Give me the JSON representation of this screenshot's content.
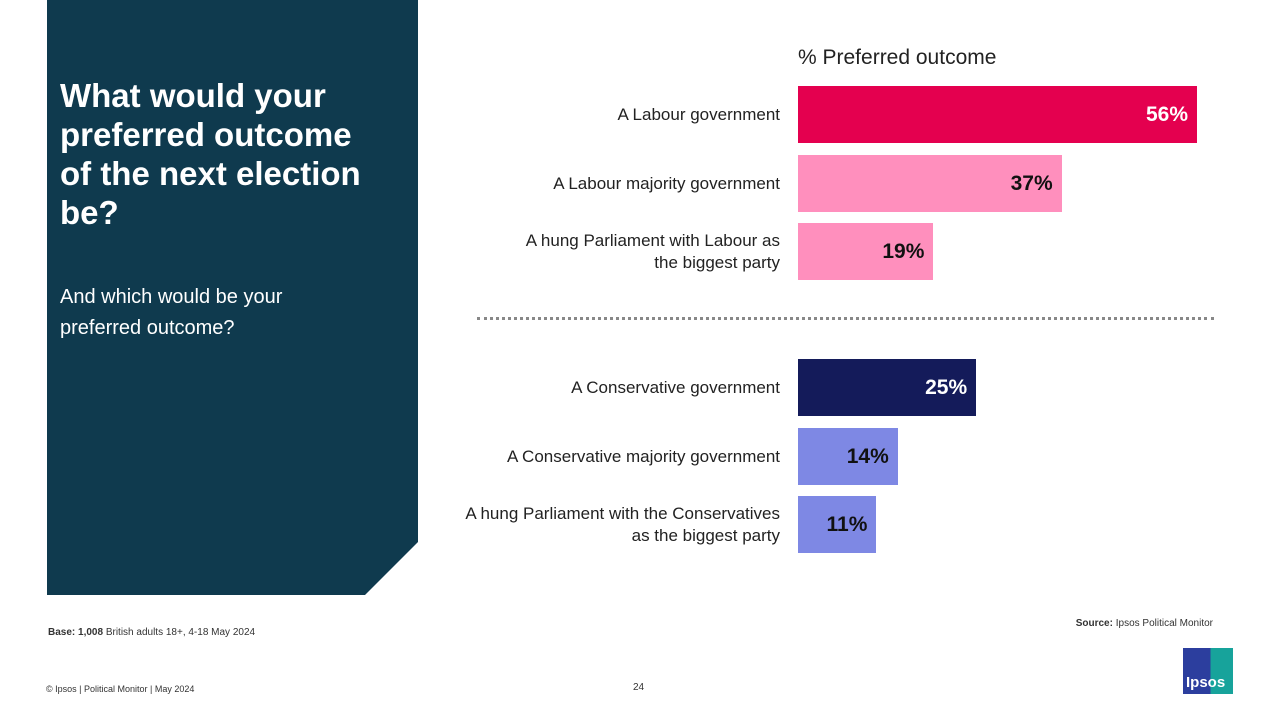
{
  "title": "What would your preferred outcome of the next election be?",
  "subtitle": "And which would be your preferred outcome?",
  "chart_data": {
    "type": "bar",
    "orientation": "horizontal",
    "xlabel": "% Preferred outcome",
    "xlim": [
      0,
      100
    ],
    "categories": [
      "A Labour government",
      "A Labour majority government",
      "A hung Parliament with Labour as the biggest party",
      "A Conservative government",
      "A Conservative majority government",
      "A hung Parliament with the Conservatives as the biggest party"
    ],
    "values": [
      56,
      37,
      19,
      25,
      14,
      11
    ],
    "data_labels": [
      "56%",
      "37%",
      "19%",
      "25%",
      "14%",
      "11%"
    ],
    "colors": [
      "#E4004F",
      "#FF8FBD",
      "#FF8FBD",
      "#141B5A",
      "#7E88E4",
      "#7E88E4"
    ],
    "label_colors": [
      "#ffffff",
      "#111111",
      "#111111",
      "#ffffff",
      "#111111",
      "#111111"
    ]
  },
  "footer": {
    "base_bold": "Base: 1,008",
    "base_rest": " British adults 18+, 4-18 May 2024",
    "source_bold": "Source:",
    "source_rest": " Ipsos Political Monitor",
    "copyright": "© Ipsos | Political Monitor | May 2024",
    "page": "24",
    "logo": "Ipsos"
  }
}
